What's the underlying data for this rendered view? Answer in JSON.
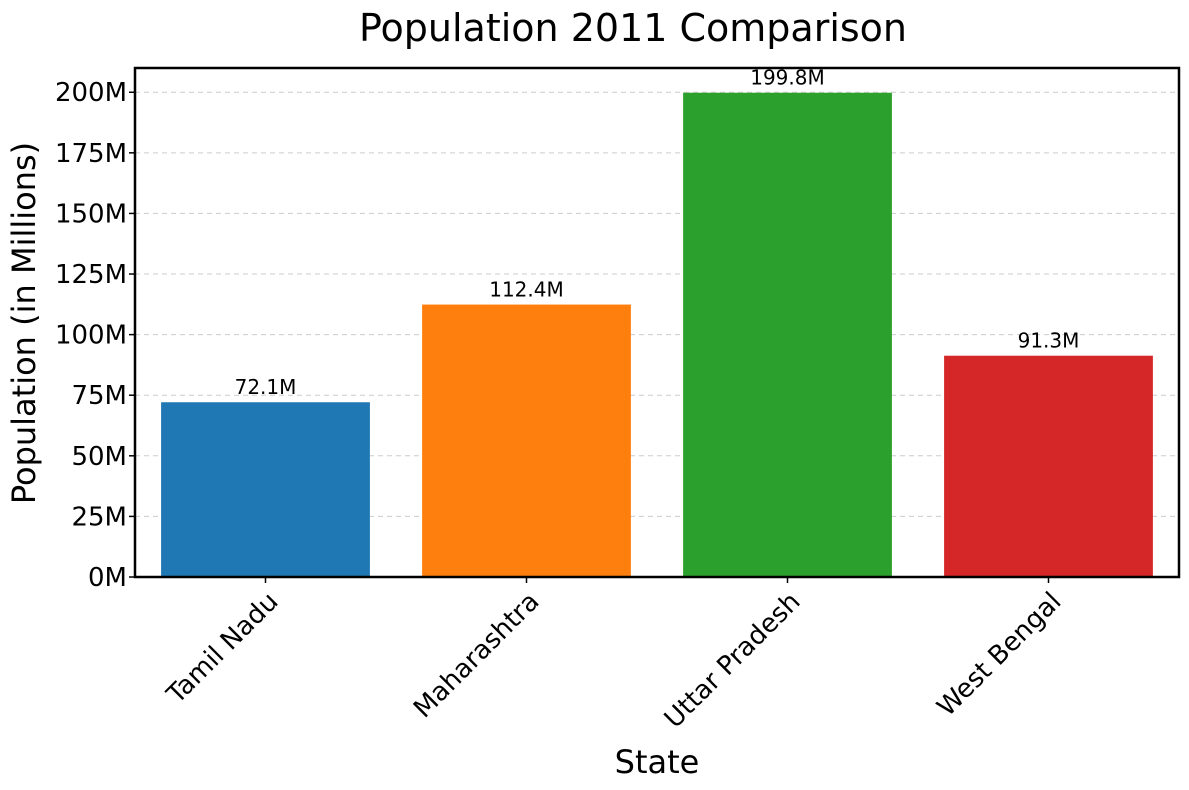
{
  "chart_data": {
    "type": "bar",
    "title": "Population 2011 Comparison",
    "xlabel": "State",
    "ylabel": "Population (in Millions)",
    "categories": [
      "Tamil Nadu",
      "Maharashtra",
      "Uttar Pradesh",
      "West Bengal"
    ],
    "values": [
      72.1,
      112.4,
      199.8,
      91.3
    ],
    "value_labels": [
      "72.1M",
      "112.4M",
      "199.8M",
      "91.3M"
    ],
    "colors": [
      "#1f77b4",
      "#ff7f0e",
      "#2ca02c",
      "#d62728"
    ],
    "ylim": [
      0,
      210
    ],
    "yticks": [
      0,
      25,
      50,
      75,
      100,
      125,
      150,
      175,
      200
    ],
    "ytick_labels": [
      "0M",
      "25M",
      "50M",
      "75M",
      "100M",
      "125M",
      "150M",
      "175M",
      "200M"
    ],
    "grid": "y-axis dashed"
  }
}
